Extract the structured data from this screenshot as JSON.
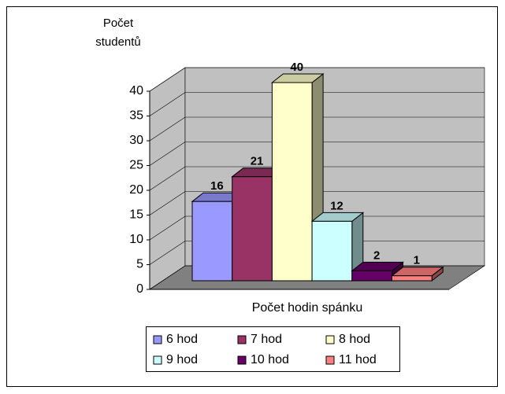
{
  "chart_data": {
    "type": "bar3d",
    "y_axis_title": "Počet studentů",
    "x_axis_title": "Počet hodin spánku",
    "series": [
      {
        "name": "6 hod",
        "color": "#9999ff",
        "values": [
          16
        ]
      },
      {
        "name": "7 hod",
        "color": "#993366",
        "values": [
          21
        ]
      },
      {
        "name": "8 hod",
        "color": "#ffffcc",
        "values": [
          40
        ]
      },
      {
        "name": "9 hod",
        "color": "#ccffff",
        "values": [
          12
        ]
      },
      {
        "name": "10 hod",
        "color": "#660066",
        "values": [
          2
        ]
      },
      {
        "name": "11 hod",
        "color": "#ff8080",
        "values": [
          1
        ]
      }
    ],
    "ylim": [
      0,
      40
    ],
    "yticks": [
      0,
      5,
      10,
      15,
      20,
      25,
      30,
      35,
      40
    ],
    "grid": true,
    "legend": "bottom",
    "wall_color": "#c0c0c0",
    "floor_color": "#808080"
  }
}
